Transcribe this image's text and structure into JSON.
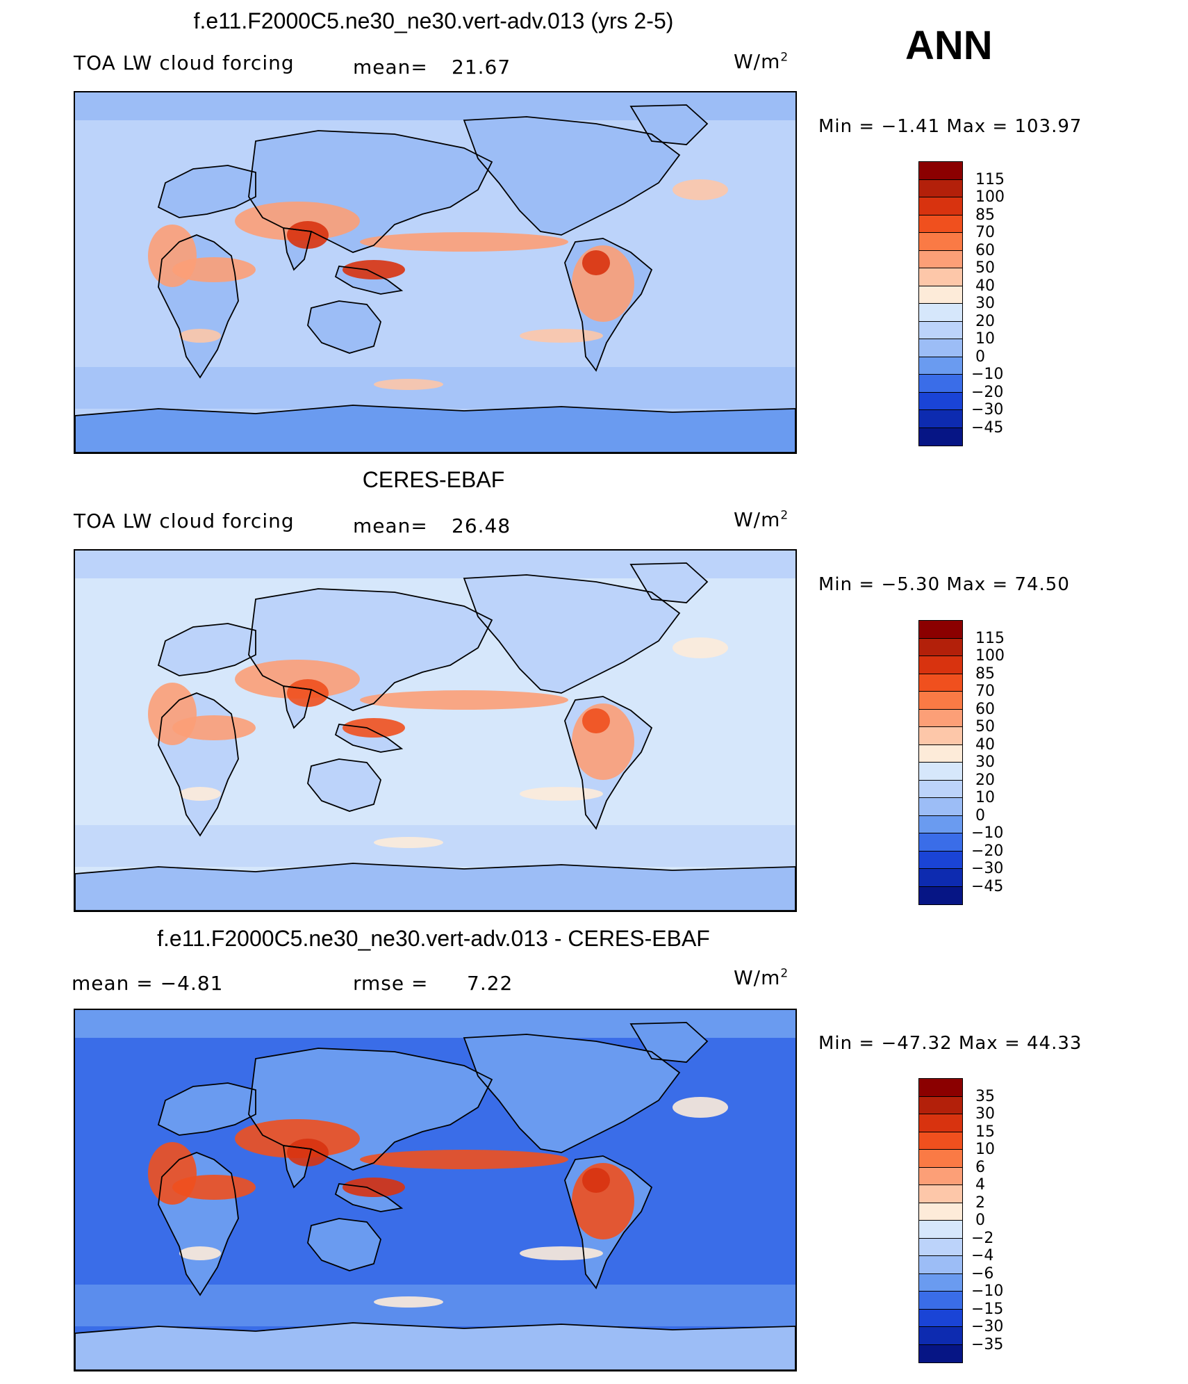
{
  "season": "ANN",
  "panels": [
    {
      "title": "f.e11.F2000C5.ne30_ne30.vert-adv.013 (yrs 2-5)",
      "left_label": "TOA LW cloud forcing",
      "stat_label": "mean=",
      "stat_value": "21.67",
      "units": "W/m",
      "units_sup": "2",
      "minmax": "Min =   −1.41  Max  =  103.97",
      "levels": [
        "115",
        "100",
        "85",
        "70",
        "60",
        "50",
        "40",
        "30",
        "20",
        "10",
        "0",
        "−10",
        "−20",
        "−30",
        "−45"
      ],
      "colors": [
        "#8b0000",
        "#b3200a",
        "#d8330f",
        "#f0501e",
        "#fa7a45",
        "#fc9f77",
        "#fdc7a9",
        "#fdebd9",
        "#d6e7fb",
        "#bcd3fa",
        "#9cbdf6",
        "#6a9bf0",
        "#3a6de8",
        "#1a44d6",
        "#0d2bb0",
        "#061585"
      ],
      "map_colors": {
        "ocean": "#bcd3fa",
        "land": "#9cbdf6",
        "polar": "#6a9bf0",
        "warm": "#fc9f77",
        "hot": "#d8330f",
        "mild": "#fdc7a9"
      }
    },
    {
      "title": "CERES-EBAF",
      "left_label": "TOA LW cloud forcing",
      "stat_label": "mean=",
      "stat_value": "26.48",
      "units": "W/m",
      "units_sup": "2",
      "minmax": "Min =   −5.30  Max  =    74.50",
      "levels": [
        "115",
        "100",
        "85",
        "70",
        "60",
        "50",
        "40",
        "30",
        "20",
        "10",
        "0",
        "−10",
        "−20",
        "−30",
        "−45"
      ],
      "colors": [
        "#8b0000",
        "#b3200a",
        "#d8330f",
        "#f0501e",
        "#fa7a45",
        "#fc9f77",
        "#fdc7a9",
        "#fdebd9",
        "#d6e7fb",
        "#bcd3fa",
        "#9cbdf6",
        "#6a9bf0",
        "#3a6de8",
        "#1a44d6",
        "#0d2bb0",
        "#061585"
      ],
      "map_colors": {
        "ocean": "#d6e7fb",
        "land": "#bcd3fa",
        "polar": "#9cbdf6",
        "warm": "#fc9f77",
        "hot": "#f0501e",
        "mild": "#fdebd9"
      }
    },
    {
      "title": "f.e11.F2000C5.ne30_ne30.vert-adv.013 - CERES-EBAF",
      "left_label": "mean  =    −4.81",
      "stat_label": "rmse  =",
      "stat_value": "7.22",
      "units": "W/m",
      "units_sup": "2",
      "minmax": "Min  = −47.32  Max  =    44.33",
      "levels": [
        "35",
        "30",
        "15",
        "10",
        "6",
        "4",
        "2",
        "0",
        "−2",
        "−4",
        "−6",
        "−10",
        "−15",
        "−30",
        "−35"
      ],
      "colors": [
        "#8b0000",
        "#b3200a",
        "#d8330f",
        "#f0501e",
        "#fa7a45",
        "#fc9f77",
        "#fdc7a9",
        "#fdebd9",
        "#d6e7fb",
        "#bcd3fa",
        "#9cbdf6",
        "#6a9bf0",
        "#3a6de8",
        "#1a44d6",
        "#0d2bb0",
        "#061585"
      ],
      "map_colors": {
        "ocean": "#3a6de8",
        "land": "#6a9bf0",
        "polar": "#9cbdf6",
        "warm": "#f0501e",
        "hot": "#d8330f",
        "mild": "#fdebd9"
      }
    }
  ]
}
